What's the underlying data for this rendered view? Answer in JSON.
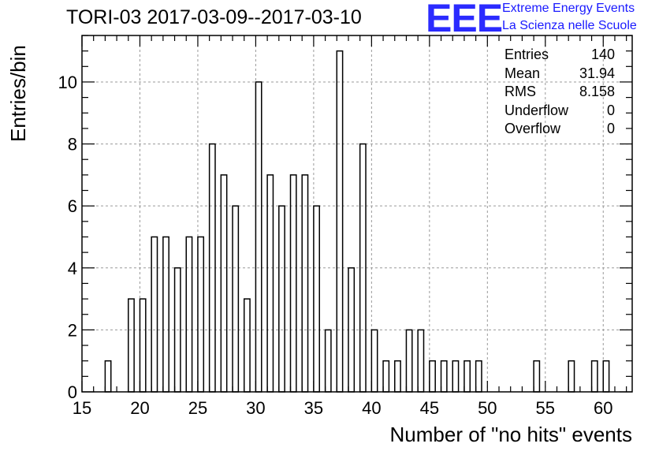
{
  "title": "TORI-03 2017-03-09--2017-03-10",
  "logo": {
    "letters": "EEE",
    "line1": "Extreme Energy Events",
    "line2": "La Scienza nelle Scuole",
    "color": "#2b2bff"
  },
  "stats": [
    {
      "label": "Entries",
      "value": "140"
    },
    {
      "label": "Mean",
      "value": "31.94"
    },
    {
      "label": "RMS",
      "value": "8.158"
    },
    {
      "label": "Underflow",
      "value": "0"
    },
    {
      "label": "Overflow",
      "value": "0"
    }
  ],
  "chart_data": {
    "type": "bar",
    "title": "TORI-03 2017-03-09--2017-03-10",
    "xlabel": "Number of \"no hits\" events",
    "ylabel": "Entries/bin",
    "xlim": [
      15,
      62.5
    ],
    "ylim": [
      0,
      11.5
    ],
    "bin_width": 0.5,
    "grid": true,
    "x_ticks": [
      15,
      20,
      25,
      30,
      35,
      40,
      45,
      50,
      55,
      60
    ],
    "y_ticks": [
      0,
      2,
      4,
      6,
      8,
      10
    ],
    "bins": [
      {
        "x": 17,
        "count": 1
      },
      {
        "x": 19,
        "count": 3
      },
      {
        "x": 20,
        "count": 3
      },
      {
        "x": 21,
        "count": 5
      },
      {
        "x": 22,
        "count": 5
      },
      {
        "x": 23,
        "count": 4
      },
      {
        "x": 24,
        "count": 5
      },
      {
        "x": 25,
        "count": 5
      },
      {
        "x": 26,
        "count": 8
      },
      {
        "x": 27,
        "count": 7
      },
      {
        "x": 28,
        "count": 6
      },
      {
        "x": 29,
        "count": 3
      },
      {
        "x": 30,
        "count": 10
      },
      {
        "x": 31,
        "count": 7
      },
      {
        "x": 32,
        "count": 6
      },
      {
        "x": 33,
        "count": 7
      },
      {
        "x": 34,
        "count": 7
      },
      {
        "x": 35,
        "count": 6
      },
      {
        "x": 36,
        "count": 2
      },
      {
        "x": 37,
        "count": 11
      },
      {
        "x": 38,
        "count": 4
      },
      {
        "x": 39,
        "count": 8
      },
      {
        "x": 40,
        "count": 2
      },
      {
        "x": 41,
        "count": 1
      },
      {
        "x": 42,
        "count": 1
      },
      {
        "x": 43,
        "count": 2
      },
      {
        "x": 44,
        "count": 2
      },
      {
        "x": 45,
        "count": 1
      },
      {
        "x": 46,
        "count": 1
      },
      {
        "x": 47,
        "count": 1
      },
      {
        "x": 48,
        "count": 1
      },
      {
        "x": 49,
        "count": 1
      },
      {
        "x": 54,
        "count": 1
      },
      {
        "x": 57,
        "count": 1
      },
      {
        "x": 59,
        "count": 1
      },
      {
        "x": 60,
        "count": 1
      }
    ]
  }
}
